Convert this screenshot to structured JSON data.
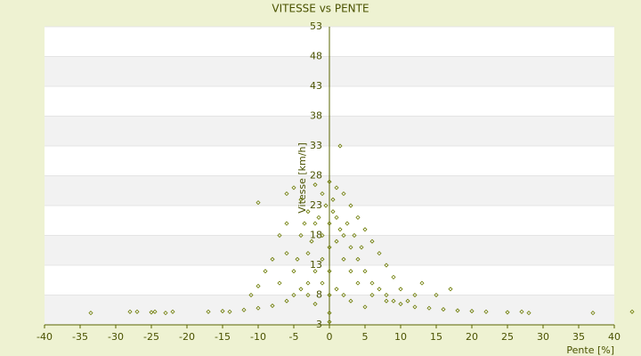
{
  "chart_data": {
    "type": "scatter",
    "title": "VITESSE vs PENTE",
    "x_label": "Pente [%]",
    "y_label": "Vitesse [km/h]",
    "color": "#6b7a00",
    "x": [
      -33.5,
      -28,
      -27,
      -25,
      -24.5,
      -23,
      -22,
      -17,
      -15,
      -14,
      -12,
      -10,
      -8,
      -6,
      -5,
      -4,
      -3,
      -2,
      -1,
      20,
      22,
      25,
      27,
      28,
      37,
      42.5,
      18,
      16,
      14,
      12,
      10,
      8,
      6,
      4,
      3,
      2,
      1,
      -10,
      1.5,
      -6,
      -5,
      -4,
      -3,
      -2,
      -1,
      0,
      0.5,
      1,
      2,
      3,
      4,
      5,
      6,
      7,
      8,
      9,
      10,
      12,
      13,
      15,
      17,
      -7,
      -8,
      -9,
      -6,
      -5,
      -4,
      -3,
      -2,
      -1,
      0,
      0,
      0,
      0,
      1,
      2,
      3,
      4,
      5,
      6,
      7,
      8,
      9,
      11,
      -7,
      -10,
      -11,
      -6,
      -3,
      -1,
      1,
      2,
      3,
      5,
      -2,
      0,
      0,
      0.5,
      -0.5,
      1.5,
      2.5,
      -1.5,
      -2.5,
      3.5,
      4.5,
      -4.5,
      -3.5
    ],
    "values": [
      5,
      5.2,
      5.2,
      5.1,
      5.2,
      5,
      5.2,
      5.2,
      5.3,
      5.2,
      5.5,
      5.8,
      6.2,
      7,
      8,
      9,
      10,
      12,
      14,
      5.3,
      5.2,
      5.1,
      5.2,
      5,
      5,
      5.2,
      5.4,
      5.6,
      5.8,
      6,
      6.5,
      7,
      8,
      10,
      12,
      14,
      17,
      23.5,
      33,
      25,
      26,
      24,
      22,
      26.5,
      25,
      27,
      24,
      26,
      25,
      23,
      21,
      19,
      17,
      15,
      13,
      11,
      9,
      8,
      10,
      8,
      9,
      18,
      14,
      12,
      15,
      12,
      18,
      15,
      20,
      18,
      20,
      16,
      12,
      8,
      21,
      18,
      16,
      14,
      12,
      10,
      9,
      8,
      7,
      7,
      10,
      9.5,
      8,
      20,
      8,
      10,
      9,
      8,
      7,
      6,
      6.5,
      5,
      3.5,
      22,
      23,
      19,
      20,
      21,
      17,
      18,
      16,
      14,
      20
    ],
    "xlim": [
      -40,
      40
    ],
    "xticks": [
      -40,
      -35,
      -30,
      -25,
      -20,
      -15,
      -10,
      -5,
      0,
      5,
      10,
      15,
      20,
      25,
      30,
      35,
      40
    ],
    "ylim": [
      3,
      53
    ],
    "yticks": [
      3,
      8,
      13,
      18,
      23,
      28,
      33,
      38,
      43,
      48,
      53
    ]
  }
}
